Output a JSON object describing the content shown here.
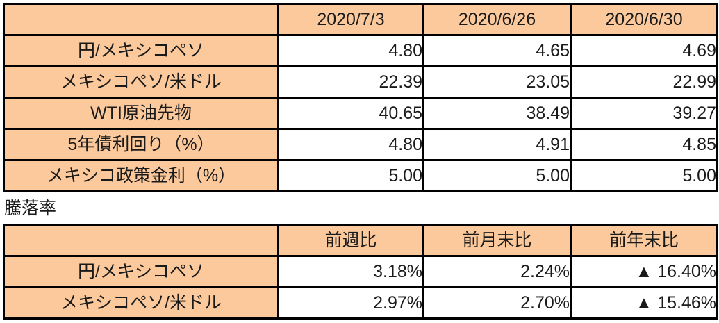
{
  "colors": {
    "header_fill": "#FBC99B",
    "border": "#000000",
    "text": "#1A1A1A",
    "value_cell_bg": "#FFFFFF"
  },
  "negative_marker": "▲",
  "section_title": "騰落率",
  "chart_data": [
    {
      "type": "table",
      "title": "",
      "columns": [
        "",
        "2020/7/3",
        "2020/6/26",
        "2020/6/30"
      ],
      "rows": [
        [
          "円/メキシコペソ",
          "4.80",
          "4.65",
          "4.69"
        ],
        [
          "メキシコペソ/米ドル",
          "22.39",
          "23.05",
          "22.99"
        ],
        [
          "WTI原油先物",
          "40.65",
          "38.49",
          "39.27"
        ],
        [
          "5年債利回り（%）",
          "4.80",
          "4.91",
          "4.85"
        ],
        [
          "メキシコ政策金利（%）",
          "5.00",
          "5.00",
          "5.00"
        ]
      ]
    },
    {
      "type": "table",
      "title": "騰落率",
      "columns": [
        "",
        "前週比",
        "前月末比",
        "前年末比"
      ],
      "rows": [
        [
          "円/メキシコペソ",
          "3.18%",
          "2.24%",
          "▲ 16.40%"
        ],
        [
          "メキシコペソ/米ドル",
          "2.97%",
          "2.70%",
          "▲ 15.46%"
        ]
      ]
    }
  ]
}
